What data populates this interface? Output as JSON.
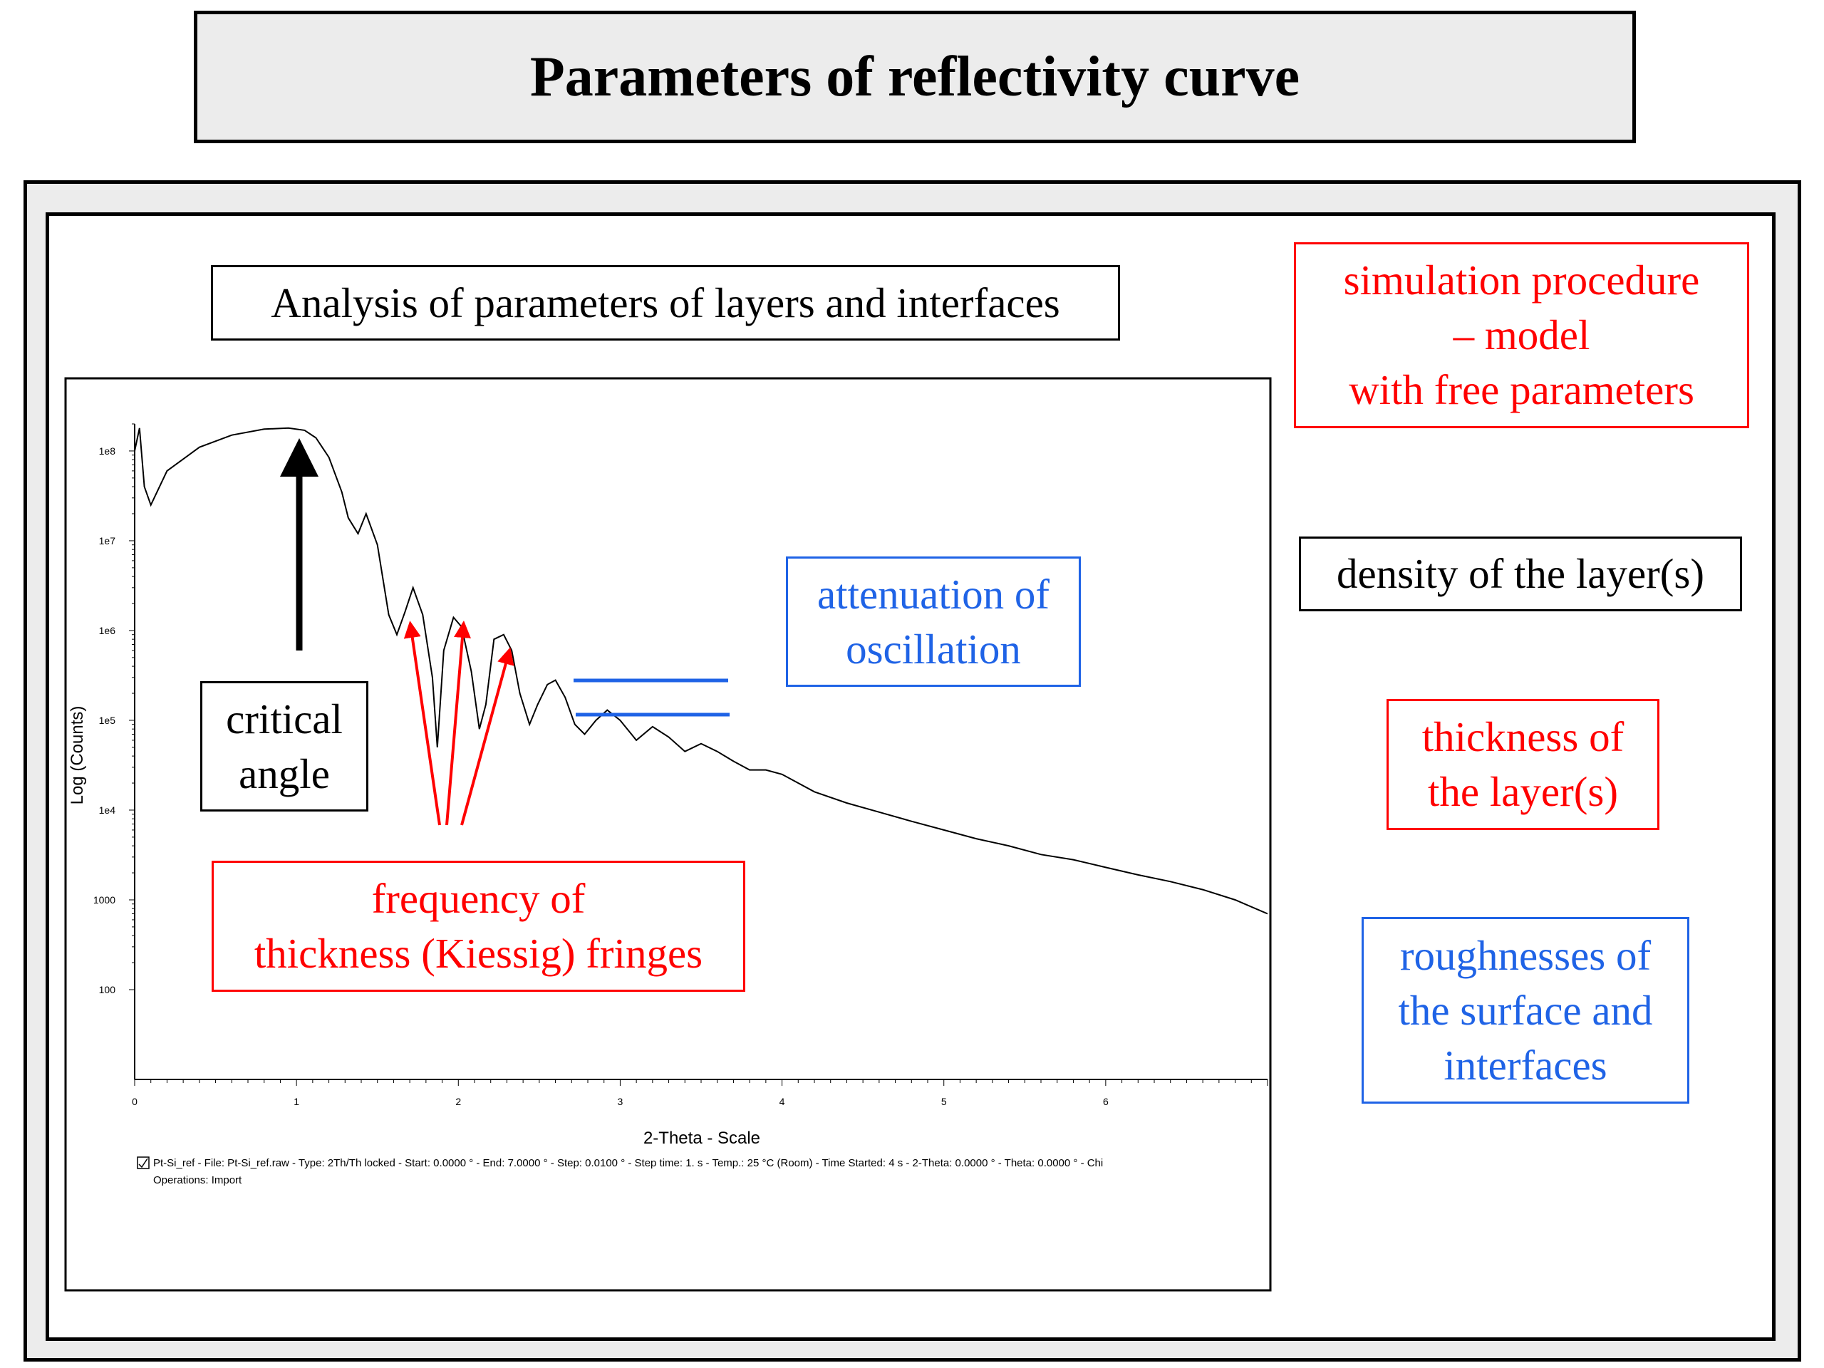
{
  "title": "Parameters of reflectivity curve",
  "analysis_label": "Analysis of parameters of layers and interfaces",
  "simulation_label": [
    "simulation procedure",
    "– model",
    "with free parameters"
  ],
  "density_label": "density of the layer(s)",
  "thickness_label": [
    "thickness of",
    "the layer(s)"
  ],
  "roughness_label": [
    "roughnesses of",
    "the surface and",
    "interfaces"
  ],
  "critical_angle_label": [
    "critical",
    "angle"
  ],
  "kiessig_label": [
    "frequency of",
    "thickness (Kiessig) fringes"
  ],
  "attenuation_label": [
    "attenuation of",
    "oscillation"
  ],
  "colors": {
    "red": "#ff0000",
    "blue": "#1f63e6",
    "black": "#000000",
    "panel_gray": "#ececec"
  },
  "chart_data": {
    "type": "line",
    "xlabel": "2-Theta - Scale",
    "ylabel": "Log (Counts)",
    "x_scale": "linear",
    "y_scale": "log",
    "xlim": [
      0,
      7
    ],
    "ylim": [
      10,
      200000000
    ],
    "x_ticks": [
      0,
      1,
      2,
      3,
      4,
      5,
      6
    ],
    "x_tick_labels": [
      "0",
      "1",
      "2",
      "3",
      "4",
      "5",
      "6"
    ],
    "y_ticks": [
      100,
      1000,
      10000,
      100000,
      1000000,
      10000000,
      100000000
    ],
    "y_tick_labels": [
      "100",
      "1000",
      "1e4",
      "1e5",
      "1e6",
      "1e7",
      "1e8"
    ],
    "series": [
      {
        "x": [
          0,
          0.03,
          0.06,
          0.1,
          0.2,
          0.4,
          0.6,
          0.8,
          0.95,
          1.05,
          1.12,
          1.2,
          1.28,
          1.32,
          1.38,
          1.43,
          1.5,
          1.57,
          1.62,
          1.67,
          1.72,
          1.78,
          1.84,
          1.87,
          1.91,
          1.97,
          2.02,
          2.08,
          2.13,
          2.17,
          2.22,
          2.28,
          2.33,
          2.38,
          2.44,
          2.49,
          2.55,
          2.6,
          2.66,
          2.72,
          2.78,
          2.85,
          2.92,
          3.0,
          3.1,
          3.2,
          3.3,
          3.4,
          3.5,
          3.6,
          3.7,
          3.8,
          3.9,
          4.0,
          4.2,
          4.4,
          4.6,
          4.8,
          5.0,
          5.2,
          5.4,
          5.6,
          5.8,
          6.0,
          6.2,
          6.4,
          6.6,
          6.8,
          7.0
        ],
        "y": [
          100000000,
          180000000,
          40000000,
          25000000,
          60000000,
          110000000,
          150000000,
          175000000,
          180000000,
          170000000,
          140000000,
          85000000,
          35000000,
          18000000,
          12000000,
          20000000,
          9000000,
          1500000,
          900000,
          1600000,
          3000000,
          1500000,
          300000,
          50000,
          600000,
          1400000,
          1100000,
          350000,
          80000,
          150000,
          800000,
          900000,
          600000,
          200000,
          90000,
          150000,
          250000,
          280000,
          180000,
          90000,
          70000,
          100000,
          130000,
          100000,
          60000,
          85000,
          65000,
          45000,
          55000,
          45000,
          35000,
          28000,
          28000,
          25000,
          16000,
          12000,
          9500,
          7500,
          6000,
          4800,
          4000,
          3200,
          2800,
          2300,
          1900,
          1600,
          1300,
          1000,
          700
        ]
      }
    ],
    "grid": false,
    "legend": "none",
    "info_line_1": "Pt-Si_ref - File: Pt-Si_ref.raw - Type: 2Th/Th locked - Start: 0.0000 ° - End: 7.0000 ° - Step: 0.0100 ° - Step time: 1. s - Temp.: 25 °C (Room) - Time Started: 4 s - 2-Theta: 0.0000 ° - Theta: 0.0000 ° - Chi",
    "info_line_2": "Operations: Import"
  }
}
